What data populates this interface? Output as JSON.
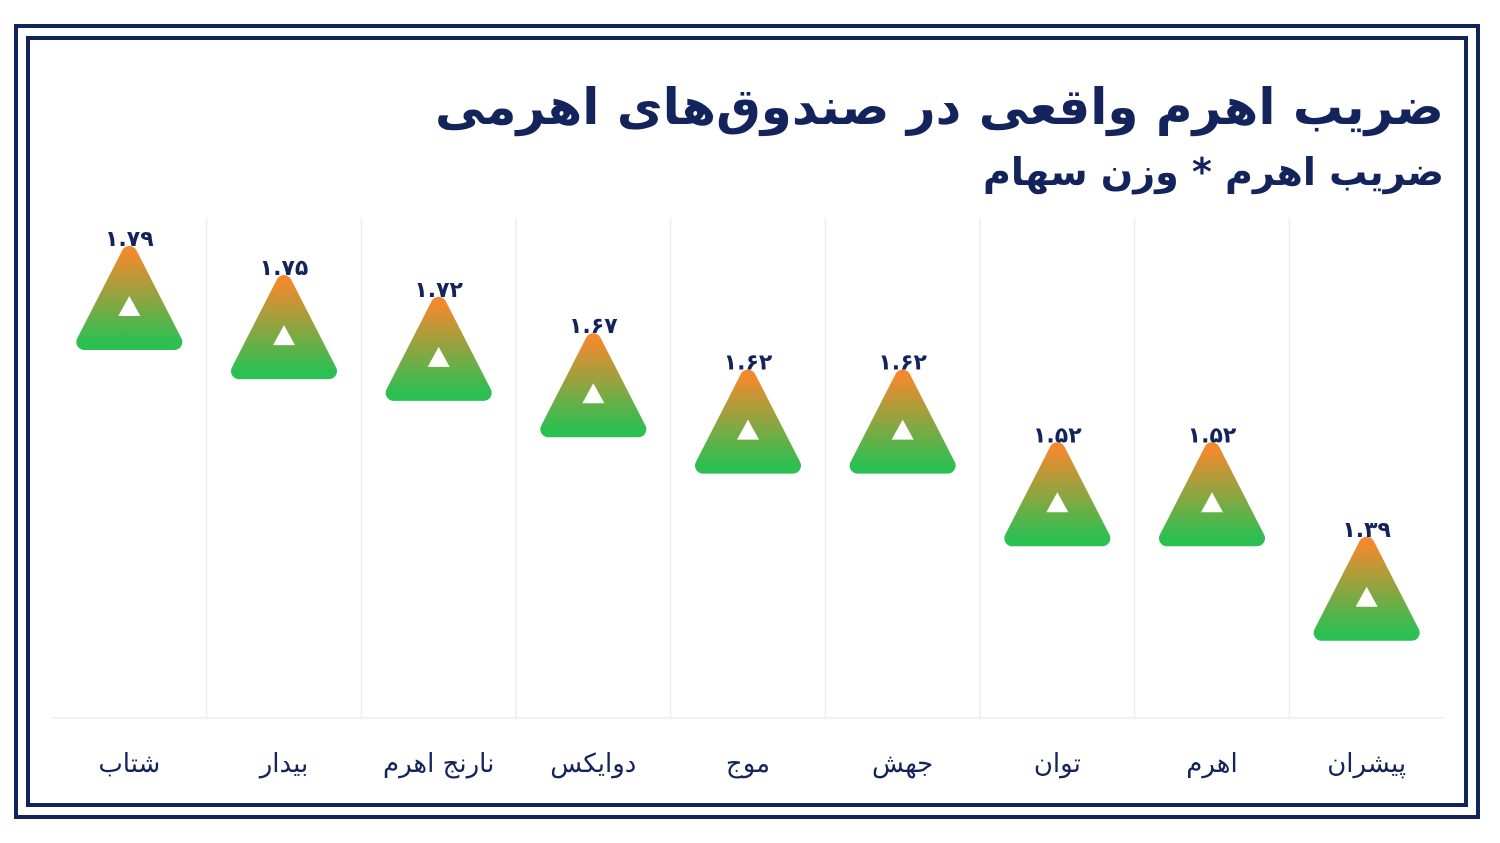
{
  "chart_data": {
    "type": "scatter",
    "title": "ضریب اهرم واقعی در صندوق‌های اهرمی",
    "subtitle": "ضریب اهرم * وزن سهام",
    "xlabel": "",
    "ylabel": "",
    "categories": [
      "شتاب",
      "بیدار",
      "نارنج اهرم",
      "دوایکس",
      "موج",
      "جهش",
      "توان",
      "اهرم",
      "پیشران"
    ],
    "values": [
      1.79,
      1.75,
      1.72,
      1.67,
      1.62,
      1.62,
      1.52,
      1.52,
      1.39
    ],
    "value_labels": [
      "۱.۷۹",
      "۱.۷۵",
      "۱.۷۲",
      "۱.۶۷",
      "۱.۶۲",
      "۱.۶۲",
      "۱.۵۲",
      "۱.۵۲",
      "۱.۳۹"
    ],
    "ylim": [
      1.0,
      1.8
    ],
    "grid": "vertical",
    "legend": "none",
    "marker": "rounded-triangle",
    "colors": {
      "marker_top": "#f08a2e",
      "marker_bottom": "#2cbf52",
      "text": "#13235b",
      "grid": "#e6e6e6",
      "frame": "#13235b"
    }
  }
}
